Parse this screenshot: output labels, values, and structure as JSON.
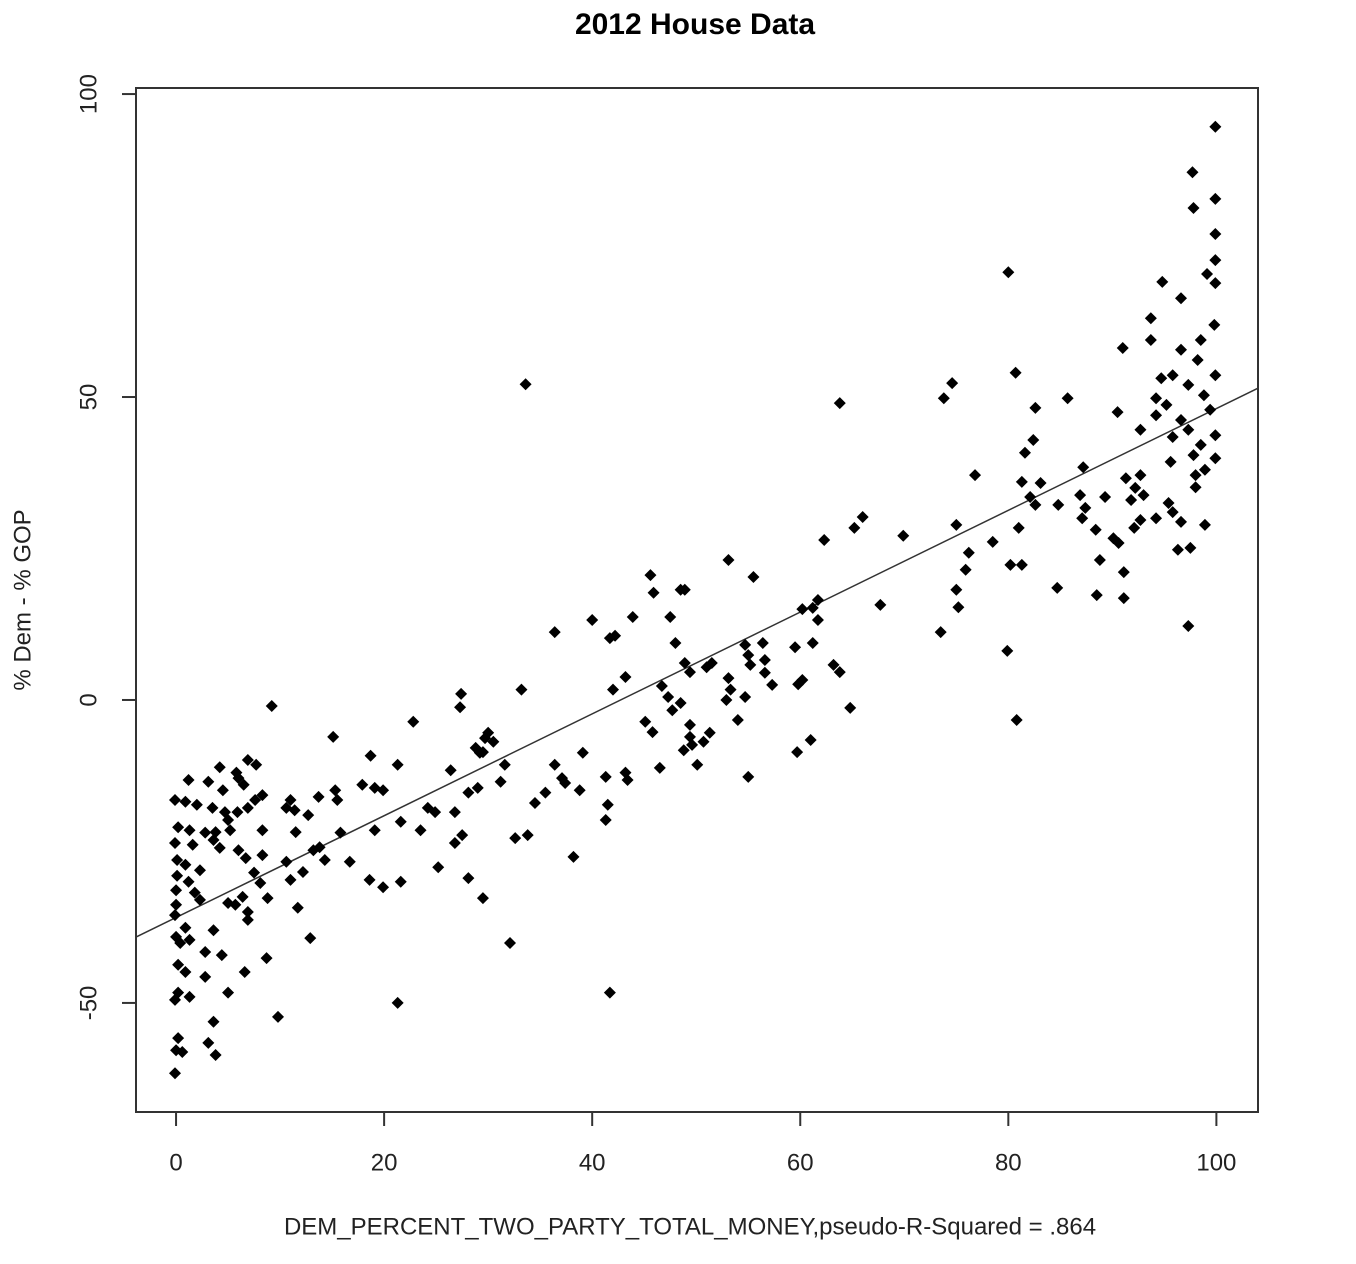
{
  "chart_data": {
    "type": "scatter",
    "title": "2012 House Data",
    "x_label": "DEM_PERCENT_TWO_PARTY_TOTAL_MONEY,pseudo-R-Squared = .864",
    "y_label": "% Dem - % GOP",
    "color": "#000000",
    "xlim": [
      -3.85,
      104
    ],
    "ylim": [
      -68,
      101
    ],
    "xticks": [
      0,
      20,
      40,
      60,
      80,
      100
    ],
    "yticks": [
      -50,
      0,
      50,
      100
    ],
    "fit": {
      "intercept": -35.9,
      "slope": 0.84
    },
    "x": [
      99.9,
      97.7,
      97.8,
      99.9,
      99.9,
      99.9,
      99.9,
      99.1,
      96.6,
      94.8,
      93.7,
      93.7,
      91.0,
      99.8,
      98.5,
      98.2,
      96.6,
      94.7,
      95.8,
      99.9,
      97.3,
      98.8,
      94.2,
      95.2,
      90.5,
      94.2,
      96.6,
      99.4,
      97.3,
      99.9,
      95.8,
      92.7,
      98.5,
      97.8,
      99.9,
      95.6,
      98.0,
      98.9,
      98.0,
      92.7,
      91.3,
      92.2,
      93.0,
      91.8,
      95.4,
      95.8,
      94.2,
      92.7,
      92.1,
      96.6,
      98.9,
      90.1,
      90.6,
      97.5,
      96.3,
      88.8,
      91.1,
      88.5,
      91.1,
      97.3,
      80.0,
      80.7,
      85.7,
      82.6,
      82.4,
      81.6,
      81.3,
      83.1,
      82.1,
      82.6,
      84.8,
      87.2,
      86.9,
      87.4,
      87.1,
      88.4,
      89.3,
      81.0,
      76.8,
      78.5,
      80.2,
      81.3,
      84.7,
      79.9,
      80.8,
      74.6,
      73.8,
      75.0,
      76.2,
      75.9,
      75.0,
      75.2,
      73.5,
      69.9,
      63.8,
      66.0,
      65.2,
      62.3,
      67.7,
      61.7,
      61.2,
      60.2,
      61.7,
      61.2,
      59.5,
      63.2,
      63.8,
      60.2,
      59.8,
      61.0,
      59.7,
      64.8,
      53.1,
      55.5,
      56.4,
      54.7,
      55.0,
      56.6,
      55.2,
      56.6,
      57.3,
      54.7,
      53.3,
      53.1,
      51.5,
      51.0,
      52.9,
      54.0,
      51.3,
      50.7,
      55.0,
      50.1,
      45.6,
      45.9,
      48.5,
      48.9,
      43.9,
      47.5,
      48.0,
      41.7,
      42.2,
      43.2,
      42.0,
      46.7,
      47.3,
      48.9,
      49.4,
      47.7,
      48.5,
      49.4,
      45.1,
      45.8,
      49.4,
      48.8,
      49.6,
      46.5,
      41.3,
      43.2,
      43.4,
      41.5,
      41.3,
      41.7,
      33.6,
      36.4,
      40.0,
      33.2,
      39.1,
      36.4,
      37.1,
      37.4,
      35.5,
      34.5,
      38.8,
      32.6,
      33.8,
      38.2,
      32.1,
      27.4,
      27.3,
      22.8,
      30.0,
      29.7,
      30.5,
      28.8,
      29.5,
      29.2,
      31.6,
      26.4,
      21.3,
      31.2,
      29.0,
      28.1,
      24.2,
      24.9,
      26.8,
      21.6,
      23.5,
      27.5,
      26.8,
      25.2,
      28.1,
      29.5,
      21.6,
      19.9,
      21.3,
      9.2,
      15.1,
      18.7,
      17.9,
      19.1,
      19.9,
      15.3,
      15.5,
      13.7,
      11.0,
      10.6,
      11.4,
      12.7,
      19.1,
      15.8,
      11.5,
      13.8,
      13.2,
      14.3,
      16.7,
      10.6,
      12.2,
      11.0,
      18.6,
      11.7,
      12.9,
      9.8,
      6.9,
      7.7,
      4.2,
      5.8,
      6.0,
      6.5,
      8.3,
      7.6,
      1.2,
      3.1,
      4.5,
      6.9,
      5.9,
      -0.1,
      0.9,
      2.0,
      3.5,
      4.7,
      0.2,
      1.3,
      2.8,
      3.8,
      5.2,
      -0.1,
      1.6,
      3.6,
      4.2,
      6.0,
      6.7,
      8.3,
      0.1,
      0.9,
      2.3,
      7.5,
      0.1,
      1.2,
      8.1,
      0,
      1.8,
      2.3,
      6.4,
      8.8,
      5.0,
      5.7,
      0,
      -0.1,
      6.9,
      6.9,
      0.9,
      3.6,
      0,
      1.3,
      0.4,
      2.8,
      4.4,
      8.7,
      0.2,
      0.9,
      6.6,
      2.8,
      0.2,
      1.3,
      5.0,
      -0.1,
      3.6,
      0.2,
      3.1,
      0,
      0.6,
      3.8,
      -0.1,
      8.3,
      5.0
    ],
    "values": [
      94.6,
      87.1,
      81.2,
      82.7,
      76.9,
      72.6,
      68.8,
      70.3,
      66.3,
      69.0,
      63.0,
      59.4,
      58.1,
      61.9,
      59.4,
      56.1,
      57.8,
      53.1,
      53.6,
      53.6,
      52.0,
      50.3,
      49.8,
      48.7,
      47.5,
      47.0,
      46.2,
      47.9,
      44.6,
      43.7,
      43.4,
      44.6,
      42.1,
      40.4,
      39.9,
      39.3,
      37.1,
      38.0,
      35.1,
      37.1,
      36.6,
      35.0,
      33.8,
      33.0,
      32.5,
      31.0,
      30.0,
      29.7,
      28.4,
      29.4,
      28.9,
      26.7,
      25.9,
      25.1,
      24.8,
      23.1,
      21.1,
      17.3,
      16.8,
      12.2,
      70.6,
      54.0,
      49.8,
      48.2,
      42.9,
      40.8,
      36.0,
      35.8,
      33.5,
      32.2,
      32.2,
      38.4,
      33.8,
      31.7,
      30.0,
      28.1,
      33.5,
      28.4,
      37.1,
      26.1,
      22.3,
      22.3,
      18.5,
      8.1,
      -3.3,
      52.3,
      49.8,
      28.9,
      24.3,
      21.5,
      18.2,
      15.3,
      11.2,
      27.1,
      49.0,
      30.2,
      28.4,
      26.4,
      15.7,
      16.5,
      15.2,
      15.0,
      13.2,
      9.4,
      8.7,
      5.8,
      4.6,
      3.3,
      2.6,
      -6.6,
      -8.6,
      -1.3,
      23.1,
      20.3,
      9.4,
      9.1,
      7.4,
      6.6,
      5.8,
      4.5,
      2.5,
      0.5,
      1.7,
      3.6,
      6.1,
      5.4,
      0,
      -3.3,
      -5.4,
      -6.9,
      -12.7,
      -10.7,
      20.6,
      17.7,
      18.2,
      18.2,
      13.7,
      13.7,
      9.4,
      10.2,
      10.6,
      3.8,
      1.7,
      2.3,
      0.5,
      6.1,
      4.6,
      -1.7,
      -0.5,
      -4.1,
      -3.6,
      -5.3,
      -6.1,
      -8.3,
      -7.4,
      -11.2,
      -12.7,
      -12.0,
      -13.2,
      -17.3,
      -19.8,
      -48.3,
      52.1,
      11.2,
      13.2,
      1.7,
      -8.7,
      -10.7,
      -12.9,
      -13.7,
      -15.3,
      -17.0,
      -14.9,
      -22.8,
      -22.3,
      -25.9,
      -40.1,
      1.0,
      -1.2,
      -3.6,
      -5.4,
      -6.3,
      -6.9,
      -7.9,
      -8.6,
      -8.7,
      -10.7,
      -11.6,
      -10.7,
      -13.5,
      -14.5,
      -15.3,
      -17.8,
      -18.5,
      -18.5,
      -20.1,
      -21.5,
      -22.3,
      -23.6,
      -27.6,
      -29.4,
      -32.7,
      -30.0,
      -30.9,
      -50.0,
      -1.0,
      -6.1,
      -9.2,
      -14.0,
      -14.5,
      -14.9,
      -14.9,
      -16.5,
      -16.0,
      -16.5,
      -17.8,
      -18.2,
      -19.0,
      -21.5,
      -21.9,
      -21.8,
      -24.3,
      -24.8,
      -26.4,
      -26.7,
      -26.7,
      -28.4,
      -29.7,
      -29.7,
      -34.3,
      -39.3,
      -52.3,
      -9.9,
      -10.7,
      -11.1,
      -12.0,
      -12.9,
      -14.0,
      -15.7,
      -16.5,
      -13.2,
      -13.5,
      -14.9,
      -17.8,
      -18.5,
      -16.5,
      -16.8,
      -17.3,
      -17.8,
      -18.5,
      -21.0,
      -21.5,
      -21.9,
      -21.8,
      -21.5,
      -23.6,
      -23.9,
      -23.1,
      -24.4,
      -24.8,
      -26.1,
      -25.6,
      -26.4,
      -27.2,
      -28.1,
      -28.5,
      -29.0,
      -30.0,
      -30.2,
      -31.4,
      -31.8,
      -33.0,
      -32.5,
      -32.7,
      -33.5,
      -33.8,
      -33.8,
      -35.5,
      -35.0,
      -36.3,
      -37.6,
      -38.0,
      -39.1,
      -39.6,
      -40.1,
      -41.6,
      -42.1,
      -42.6,
      -43.7,
      -44.9,
      -44.9,
      -45.7,
      -48.3,
      -49.0,
      -48.3,
      -49.5,
      -53.1,
      -55.8,
      -56.6,
      -57.8,
      -58.1,
      -58.6,
      -61.6,
      -21.5,
      -19.8
    ]
  }
}
